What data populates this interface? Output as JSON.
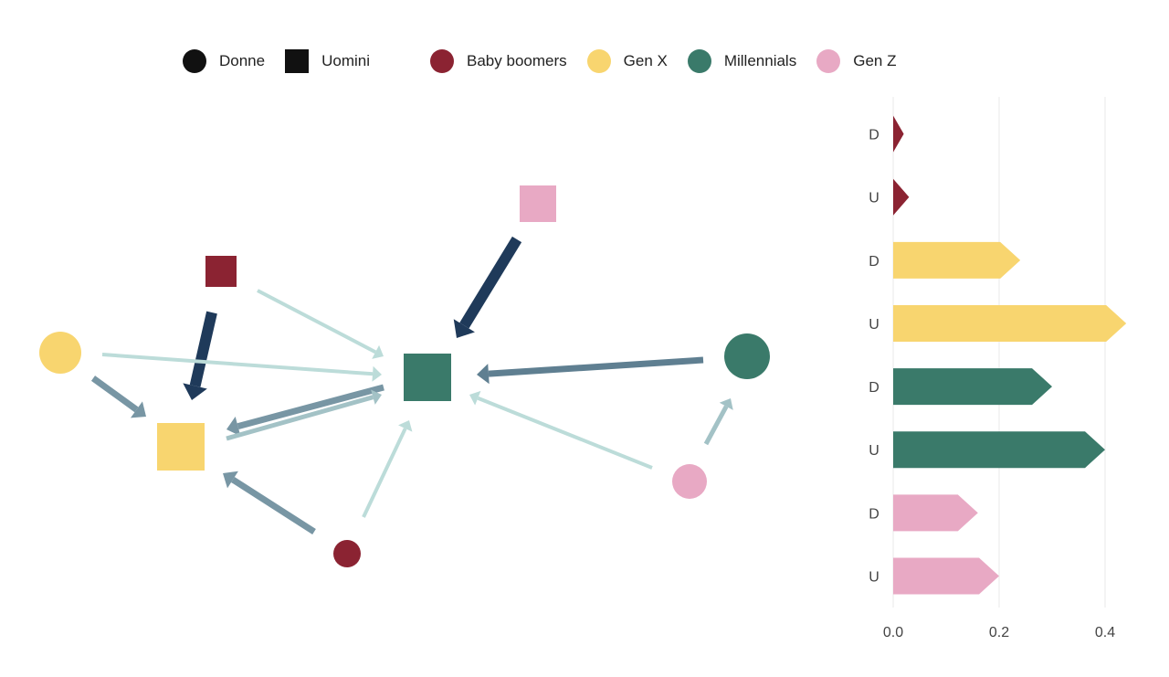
{
  "legend": {
    "shapes": [
      {
        "label": "Donne",
        "shape": "circle",
        "color": "#111111"
      },
      {
        "label": "Uomini",
        "shape": "square",
        "color": "#111111"
      }
    ],
    "generations": [
      {
        "label": "Baby boomers",
        "color": "#8b2332"
      },
      {
        "label": "Gen X",
        "color": "#f8d56f"
      },
      {
        "label": "Millennials",
        "color": "#3a7a6a"
      },
      {
        "label": "Gen Z",
        "color": "#e8a9c4"
      }
    ]
  },
  "network": {
    "nodes": [
      {
        "id": "boomer-uomini",
        "generation": "Baby boomers",
        "gender": "Uomini",
        "shape": "square",
        "color": "#8b2332"
      },
      {
        "id": "boomer-donne",
        "generation": "Baby boomers",
        "gender": "Donne",
        "shape": "circle",
        "color": "#8b2332"
      },
      {
        "id": "genx-donne",
        "generation": "Gen X",
        "gender": "Donne",
        "shape": "circle",
        "color": "#f8d56f"
      },
      {
        "id": "genx-uomini",
        "generation": "Gen X",
        "gender": "Uomini",
        "shape": "square",
        "color": "#f8d56f"
      },
      {
        "id": "millennial-uomini",
        "generation": "Millennials",
        "gender": "Uomini",
        "shape": "square",
        "color": "#3a7a6a"
      },
      {
        "id": "millennial-donne",
        "generation": "Millennials",
        "gender": "Donne",
        "shape": "circle",
        "color": "#3a7a6a"
      },
      {
        "id": "genz-uomini",
        "generation": "Gen Z",
        "gender": "Uomini",
        "shape": "square",
        "color": "#e8a9c4"
      },
      {
        "id": "genz-donne",
        "generation": "Gen Z",
        "gender": "Donne",
        "shape": "circle",
        "color": "#e8a9c4"
      }
    ],
    "edges": [
      {
        "from": "genz-uomini",
        "to": "millennial-uomini",
        "strength": "strong",
        "color": "#1f3a5a"
      },
      {
        "from": "boomer-uomini",
        "to": "genx-uomini",
        "strength": "strong",
        "color": "#1f3a5a"
      },
      {
        "from": "millennial-donne",
        "to": "millennial-uomini",
        "strength": "medium",
        "color": "#5f7f91"
      },
      {
        "from": "genx-donne",
        "to": "genx-uomini",
        "strength": "medium",
        "color": "#7896a4"
      },
      {
        "from": "boomer-donne",
        "to": "genx-uomini",
        "strength": "medium",
        "color": "#7896a4"
      },
      {
        "from": "millennial-uomini",
        "to": "genx-uomini",
        "strength": "medium",
        "color": "#7896a4"
      },
      {
        "from": "genx-uomini",
        "to": "millennial-uomini",
        "strength": "weak",
        "color": "#a3c2c6"
      },
      {
        "from": "genz-donne",
        "to": "millennial-donne",
        "strength": "weak",
        "color": "#a3c2c6"
      },
      {
        "from": "boomer-uomini",
        "to": "millennial-uomini",
        "strength": "faint",
        "color": "#bcdcd9"
      },
      {
        "from": "genx-donne",
        "to": "millennial-uomini",
        "strength": "faint",
        "color": "#bcdcd9"
      },
      {
        "from": "boomer-donne",
        "to": "millennial-uomini",
        "strength": "faint",
        "color": "#bcdcd9"
      },
      {
        "from": "genz-donne",
        "to": "millennial-uomini",
        "strength": "faint",
        "color": "#bcdcd9"
      }
    ]
  },
  "chart_data": {
    "type": "bar",
    "orientation": "horizontal",
    "categories": [
      "D",
      "U",
      "D",
      "U",
      "D",
      "U",
      "D",
      "U"
    ],
    "generations": [
      "Baby boomers",
      "Baby boomers",
      "Gen X",
      "Gen X",
      "Millennials",
      "Millennials",
      "Gen Z",
      "Gen Z"
    ],
    "values": [
      0.02,
      0.03,
      0.24,
      0.44,
      0.3,
      0.4,
      0.16,
      0.2
    ],
    "colors": [
      "#8b2332",
      "#8b2332",
      "#f8d56f",
      "#f8d56f",
      "#3a7a6a",
      "#3a7a6a",
      "#e8a9c4",
      "#e8a9c4"
    ],
    "xticks": [
      "0.0",
      "0.2",
      "0.4"
    ],
    "xlim": [
      0,
      0.45
    ],
    "grid": true
  }
}
